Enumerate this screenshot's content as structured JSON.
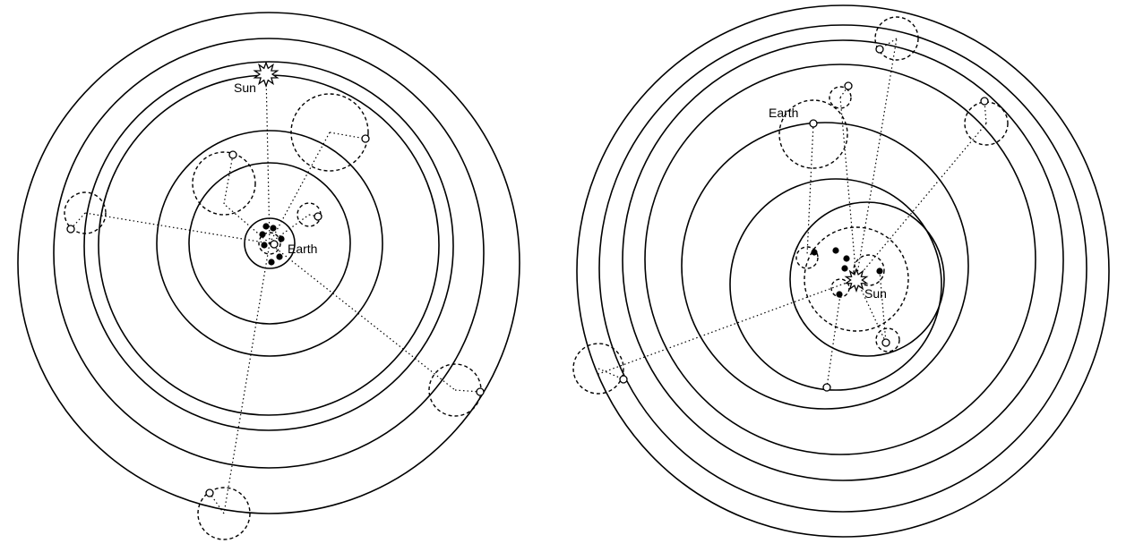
{
  "left_diagram": {
    "sun_label": "Sun",
    "earth_label": "Earth"
  },
  "right_diagram": {
    "sun_label": "Sun",
    "earth_label": "Earth"
  },
  "colors": {
    "ink": "#000000",
    "background": "#ffffff"
  }
}
